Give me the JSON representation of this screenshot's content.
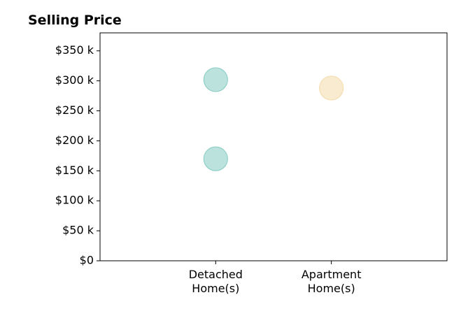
{
  "chart_data": {
    "type": "scatter",
    "title": "Selling Price",
    "xlabel": "",
    "ylabel": "",
    "categories": [
      [
        "Detached",
        "Home(s)"
      ],
      [
        "Apartment",
        "Home(s)"
      ]
    ],
    "x_range": [
      -1,
      2
    ],
    "ylim": [
      0,
      380000
    ],
    "y_ticks": [
      0,
      50000,
      100000,
      150000,
      200000,
      250000,
      300000,
      350000
    ],
    "y_tick_labels": [
      "$0",
      "$50 k",
      "$100 k",
      "$150 k",
      "$200 k",
      "$250 k",
      "$300 k",
      "$350 k"
    ],
    "grid": false,
    "legend": "none",
    "points": [
      {
        "category": 0,
        "value": 302000,
        "color": "#8fcfc6"
      },
      {
        "category": 0,
        "value": 170000,
        "color": "#8fcfc6"
      },
      {
        "category": 1,
        "value": 288000,
        "color": "#f5deb0"
      }
    ],
    "marker_edge_colors": [
      "#8fcfc6",
      "#f5deb0"
    ]
  }
}
